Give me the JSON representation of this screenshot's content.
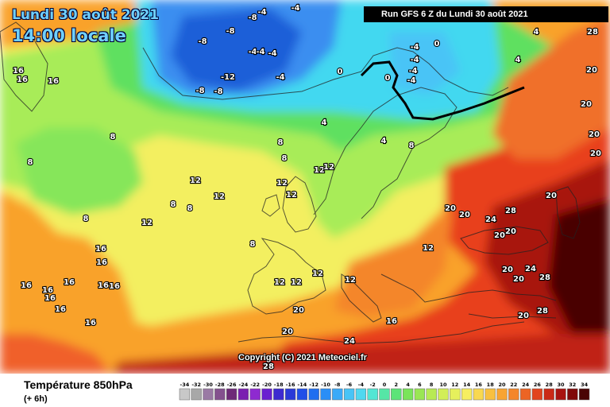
{
  "header": {
    "date": "Lundi 30 août 2021",
    "time": "14:00 locale",
    "run": "Run GFS 6 Z du Lundi 30 août 2021"
  },
  "copyright": "Copyright (C) 2021 Meteociel.fr",
  "footer": {
    "title": "Température 850hPa",
    "subtitle": "(+ 6h)"
  },
  "colors": {
    "deep_blue": "#1f5fd8",
    "blue": "#3a8ef0",
    "cyan": "#43d8f0",
    "green": "#5fe060",
    "light_green": "#a8ec58",
    "yellow": "#f3ef60",
    "orange": "#f9a22a",
    "red": "#e8401c",
    "dark_red": "#8a0c0c"
  },
  "scale": {
    "values": [
      "-34",
      "-32",
      "-30",
      "-28",
      "-26",
      "-24",
      "-22",
      "-20",
      "-18",
      "-16",
      "-14",
      "-12",
      "-10",
      "-8",
      "-6",
      "-4",
      "-2",
      "0",
      "2",
      "4",
      "6",
      "8",
      "10",
      "12",
      "14",
      "16",
      "18",
      "20",
      "22",
      "24",
      "26",
      "28",
      "30",
      "32",
      "34"
    ],
    "colors": [
      "#c8c8c8",
      "#a8a8a8",
      "#9a7aa4",
      "#84508e",
      "#6e2a78",
      "#7a1fb0",
      "#8e2ad0",
      "#6a1fd0",
      "#3d2ad0",
      "#2a3ad8",
      "#1f4fe8",
      "#1f6ef0",
      "#2a8ef6",
      "#3aaaf8",
      "#48c4f6",
      "#50d8f0",
      "#52e6d4",
      "#56e6a6",
      "#5ce478",
      "#7ae45a",
      "#9ae654",
      "#b8ea54",
      "#d2ee58",
      "#e6f05c",
      "#f6ee60",
      "#f8d850",
      "#f8c040",
      "#f8a432",
      "#f4862a",
      "#ec6424",
      "#e2441e",
      "#ca2a16",
      "#a81410",
      "#800a0a",
      "#4a0404"
    ]
  },
  "isotherm_labels": [
    {
      "text": "-8"
    },
    {
      "text": "-8"
    },
    {
      "text": "-4"
    },
    {
      "text": "-8"
    },
    {
      "text": "-4"
    },
    {
      "text": "-4"
    },
    {
      "text": "-8"
    },
    {
      "text": "-12"
    },
    {
      "text": "-8"
    },
    {
      "text": "-4"
    },
    {
      "text": "-4"
    },
    {
      "text": "0"
    },
    {
      "text": "-4"
    },
    {
      "text": "0"
    },
    {
      "text": "-4"
    },
    {
      "text": "-4"
    },
    {
      "text": "-4"
    },
    {
      "text": "-4"
    },
    {
      "text": "0"
    },
    {
      "text": "4"
    },
    {
      "text": "4"
    },
    {
      "text": "4"
    },
    {
      "text": "4"
    },
    {
      "text": "8"
    },
    {
      "text": "8"
    },
    {
      "text": "8"
    },
    {
      "text": "8"
    },
    {
      "text": "8"
    },
    {
      "text": "8"
    },
    {
      "text": "8"
    },
    {
      "text": "8"
    },
    {
      "text": "8"
    },
    {
      "text": "12"
    },
    {
      "text": "12"
    },
    {
      "text": "12"
    },
    {
      "text": "12"
    },
    {
      "text": "12"
    },
    {
      "text": "12"
    },
    {
      "text": "12"
    },
    {
      "text": "12"
    },
    {
      "text": "12"
    },
    {
      "text": "12"
    },
    {
      "text": "12"
    },
    {
      "text": "12"
    },
    {
      "text": "16"
    },
    {
      "text": "16"
    },
    {
      "text": "16"
    },
    {
      "text": "16"
    },
    {
      "text": "16"
    },
    {
      "text": "16"
    },
    {
      "text": "16"
    },
    {
      "text": "16"
    },
    {
      "text": "16"
    },
    {
      "text": "16"
    },
    {
      "text": "16"
    },
    {
      "text": "16"
    },
    {
      "text": "16"
    },
    {
      "text": "16"
    },
    {
      "text": "20"
    },
    {
      "text": "20"
    },
    {
      "text": "20"
    },
    {
      "text": "20"
    },
    {
      "text": "20"
    },
    {
      "text": "20"
    },
    {
      "text": "20"
    },
    {
      "text": "20"
    },
    {
      "text": "20"
    },
    {
      "text": "20"
    },
    {
      "text": "20"
    },
    {
      "text": "20"
    },
    {
      "text": "24"
    },
    {
      "text": "24"
    },
    {
      "text": "24"
    },
    {
      "text": "28"
    },
    {
      "text": "28"
    },
    {
      "text": "28"
    },
    {
      "text": "28"
    },
    {
      "text": "28"
    },
    {
      "text": "20"
    },
    {
      "text": "20"
    }
  ]
}
